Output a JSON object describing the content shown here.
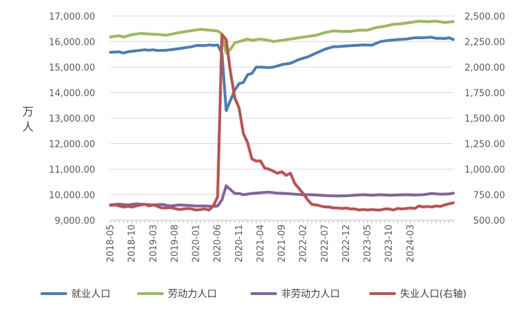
{
  "chart_data": {
    "type": "line",
    "ylabel": "万人",
    "ylim_left": [
      9000,
      17000
    ],
    "ylim_right": [
      500,
      2500
    ],
    "left_ticks": [
      "9,000.00",
      "10,000.00",
      "11,000.00",
      "12,000.00",
      "13,000.00",
      "14,000.00",
      "15,000.00",
      "16,000.00",
      "17,000.00"
    ],
    "right_ticks": [
      "500.00",
      "750.00",
      "1,000.00",
      "1,250.00",
      "1,500.00",
      "1,750.00",
      "2,000.00",
      "2,250.00",
      "2,500.00"
    ],
    "x_labels": [
      "2018-05",
      "2018-10",
      "2019-03",
      "2019-08",
      "2020-01",
      "2020-06",
      "2020-11",
      "2021-04",
      "2021-09",
      "2022-02",
      "2022-07",
      "2022-12",
      "2023-05",
      "2023-10",
      "2024-03"
    ],
    "grid": true,
    "legend_position": "bottom",
    "series": [
      {
        "name": "就业人口",
        "axis": "left",
        "color": "#4a7ebb",
        "points": [
          [
            0,
            15580
          ],
          [
            2,
            15600
          ],
          [
            3,
            15550
          ],
          [
            4,
            15600
          ],
          [
            6,
            15640
          ],
          [
            8,
            15680
          ],
          [
            9,
            15660
          ],
          [
            10,
            15680
          ],
          [
            11,
            15650
          ],
          [
            13,
            15660
          ],
          [
            15,
            15700
          ],
          [
            17,
            15750
          ],
          [
            19,
            15800
          ],
          [
            20,
            15850
          ],
          [
            22,
            15840
          ],
          [
            23,
            15870
          ],
          [
            24,
            15850
          ],
          [
            25,
            15870
          ],
          [
            26,
            15550
          ],
          [
            27,
            13300
          ],
          [
            28,
            13700
          ],
          [
            29,
            14100
          ],
          [
            30,
            14350
          ],
          [
            31,
            14400
          ],
          [
            32,
            14700
          ],
          [
            33,
            14750
          ],
          [
            34,
            15000
          ],
          [
            35,
            15000
          ],
          [
            37,
            14980
          ],
          [
            38,
            15000
          ],
          [
            40,
            15100
          ],
          [
            42,
            15150
          ],
          [
            44,
            15300
          ],
          [
            46,
            15400
          ],
          [
            48,
            15550
          ],
          [
            50,
            15700
          ],
          [
            52,
            15800
          ],
          [
            53,
            15800
          ],
          [
            55,
            15830
          ],
          [
            57,
            15850
          ],
          [
            59,
            15870
          ],
          [
            61,
            15860
          ],
          [
            63,
            16000
          ],
          [
            65,
            16050
          ],
          [
            67,
            16080
          ],
          [
            69,
            16100
          ],
          [
            71,
            16150
          ],
          [
            73,
            16150
          ],
          [
            75,
            16170
          ],
          [
            76,
            16130
          ],
          [
            77,
            16130
          ],
          [
            78,
            16120
          ],
          [
            79,
            16150
          ],
          [
            80,
            16080
          ]
        ]
      },
      {
        "name": "劳动力人口",
        "axis": "left",
        "color": "#9bbb59",
        "points": [
          [
            0,
            16180
          ],
          [
            2,
            16230
          ],
          [
            3,
            16180
          ],
          [
            5,
            16270
          ],
          [
            7,
            16320
          ],
          [
            9,
            16300
          ],
          [
            11,
            16280
          ],
          [
            13,
            16250
          ],
          [
            15,
            16320
          ],
          [
            17,
            16380
          ],
          [
            19,
            16430
          ],
          [
            21,
            16480
          ],
          [
            23,
            16450
          ],
          [
            25,
            16420
          ],
          [
            26,
            16290
          ],
          [
            27,
            15550
          ],
          [
            28,
            15700
          ],
          [
            29,
            15950
          ],
          [
            30,
            16000
          ],
          [
            31,
            16050
          ],
          [
            32,
            16100
          ],
          [
            33,
            16050
          ],
          [
            35,
            16100
          ],
          [
            37,
            16050
          ],
          [
            38,
            16000
          ],
          [
            40,
            16050
          ],
          [
            42,
            16100
          ],
          [
            44,
            16150
          ],
          [
            46,
            16200
          ],
          [
            48,
            16250
          ],
          [
            50,
            16350
          ],
          [
            52,
            16420
          ],
          [
            54,
            16400
          ],
          [
            56,
            16400
          ],
          [
            58,
            16450
          ],
          [
            60,
            16450
          ],
          [
            62,
            16550
          ],
          [
            64,
            16600
          ],
          [
            66,
            16680
          ],
          [
            68,
            16700
          ],
          [
            70,
            16750
          ],
          [
            72,
            16800
          ],
          [
            74,
            16780
          ],
          [
            76,
            16800
          ],
          [
            78,
            16750
          ],
          [
            80,
            16780
          ]
        ]
      },
      {
        "name": "非劳动力人口",
        "axis": "left",
        "color": "#7f64a0",
        "points": [
          [
            0,
            9600
          ],
          [
            2,
            9630
          ],
          [
            4,
            9600
          ],
          [
            6,
            9640
          ],
          [
            8,
            9620
          ],
          [
            10,
            9600
          ],
          [
            12,
            9620
          ],
          [
            14,
            9560
          ],
          [
            16,
            9600
          ],
          [
            18,
            9580
          ],
          [
            20,
            9560
          ],
          [
            22,
            9560
          ],
          [
            24,
            9540
          ],
          [
            25,
            9560
          ],
          [
            26,
            9800
          ],
          [
            27,
            10350
          ],
          [
            28,
            10200
          ],
          [
            29,
            10050
          ],
          [
            30,
            10050
          ],
          [
            31,
            10000
          ],
          [
            33,
            10050
          ],
          [
            35,
            10080
          ],
          [
            37,
            10100
          ],
          [
            39,
            10060
          ],
          [
            41,
            10050
          ],
          [
            43,
            10020
          ],
          [
            45,
            10000
          ],
          [
            47,
            10000
          ],
          [
            49,
            9980
          ],
          [
            51,
            9960
          ],
          [
            53,
            9950
          ],
          [
            55,
            9960
          ],
          [
            57,
            9980
          ],
          [
            59,
            10000
          ],
          [
            61,
            9980
          ],
          [
            63,
            10000
          ],
          [
            65,
            9980
          ],
          [
            67,
            9990
          ],
          [
            69,
            10000
          ],
          [
            71,
            9990
          ],
          [
            73,
            10000
          ],
          [
            75,
            10050
          ],
          [
            77,
            10020
          ],
          [
            79,
            10030
          ],
          [
            80,
            10060
          ]
        ]
      },
      {
        "name": "失业人口(右轴)",
        "axis": "right",
        "color": "#c0504d",
        "points": [
          [
            0,
            645
          ],
          [
            1,
            650
          ],
          [
            2,
            640
          ],
          [
            3,
            630
          ],
          [
            4,
            635
          ],
          [
            5,
            630
          ],
          [
            6,
            640
          ],
          [
            7,
            650
          ],
          [
            8,
            655
          ],
          [
            9,
            640
          ],
          [
            10,
            650
          ],
          [
            11,
            635
          ],
          [
            12,
            620
          ],
          [
            13,
            620
          ],
          [
            14,
            625
          ],
          [
            15,
            615
          ],
          [
            16,
            605
          ],
          [
            17,
            610
          ],
          [
            18,
            615
          ],
          [
            19,
            610
          ],
          [
            20,
            600
          ],
          [
            21,
            605
          ],
          [
            22,
            610
          ],
          [
            23,
            600
          ],
          [
            24,
            640
          ],
          [
            25,
            730
          ],
          [
            26,
            2320
          ],
          [
            27,
            2270
          ],
          [
            28,
            1950
          ],
          [
            29,
            1700
          ],
          [
            30,
            1600
          ],
          [
            31,
            1350
          ],
          [
            32,
            1260
          ],
          [
            33,
            1100
          ],
          [
            34,
            1080
          ],
          [
            35,
            1080
          ],
          [
            36,
            1010
          ],
          [
            37,
            1000
          ],
          [
            38,
            980
          ],
          [
            39,
            960
          ],
          [
            40,
            975
          ],
          [
            41,
            940
          ],
          [
            42,
            960
          ],
          [
            43,
            860
          ],
          [
            44,
            810
          ],
          [
            45,
            760
          ],
          [
            46,
            700
          ],
          [
            47,
            655
          ],
          [
            48,
            650
          ],
          [
            49,
            640
          ],
          [
            50,
            630
          ],
          [
            51,
            630
          ],
          [
            52,
            620
          ],
          [
            53,
            620
          ],
          [
            54,
            615
          ],
          [
            55,
            620
          ],
          [
            56,
            610
          ],
          [
            57,
            610
          ],
          [
            58,
            600
          ],
          [
            59,
            605
          ],
          [
            60,
            600
          ],
          [
            61,
            605
          ],
          [
            62,
            600
          ],
          [
            63,
            600
          ],
          [
            64,
            610
          ],
          [
            65,
            610
          ],
          [
            66,
            600
          ],
          [
            67,
            615
          ],
          [
            68,
            610
          ],
          [
            69,
            615
          ],
          [
            70,
            620
          ],
          [
            71,
            615
          ],
          [
            72,
            640
          ],
          [
            73,
            630
          ],
          [
            74,
            635
          ],
          [
            75,
            630
          ],
          [
            76,
            640
          ],
          [
            77,
            635
          ],
          [
            78,
            650
          ],
          [
            79,
            660
          ],
          [
            80,
            670
          ]
        ]
      }
    ]
  }
}
